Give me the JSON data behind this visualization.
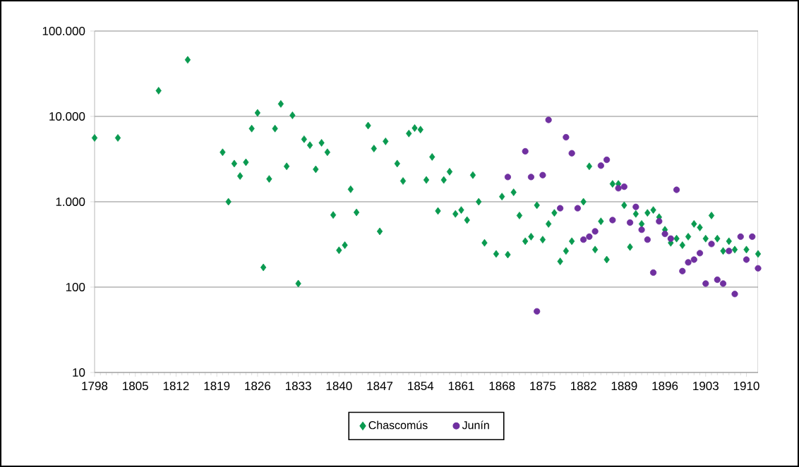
{
  "chart_data": {
    "type": "scatter",
    "log": "y",
    "grid": "y",
    "legend": "bottom",
    "xlim": [
      1798,
      1912
    ],
    "xticks": [
      1798,
      1805,
      1812,
      1819,
      1826,
      1833,
      1840,
      1847,
      1854,
      1861,
      1868,
      1875,
      1882,
      1889,
      1896,
      1903,
      1910
    ],
    "ylim": [
      10,
      100000
    ],
    "yticks": [
      {
        "value": 10,
        "label": "10"
      },
      {
        "value": 100,
        "label": "100"
      },
      {
        "value": 1000,
        "label": "1.000"
      },
      {
        "value": 10000,
        "label": "10.000"
      },
      {
        "value": 100000,
        "label": "100.000"
      }
    ],
    "series": [
      {
        "name": "Chascomús",
        "color": "#0a9a50",
        "marker": "diamond",
        "x": [
          1798,
          1802,
          1809,
          1814,
          1820,
          1821,
          1822,
          1823,
          1824,
          1825,
          1826,
          1827,
          1828,
          1829,
          1830,
          1831,
          1832,
          1833,
          1834,
          1835,
          1836,
          1837,
          1838,
          1839,
          1840,
          1841,
          1842,
          1843,
          1845,
          1846,
          1847,
          1848,
          1850,
          1851,
          1852,
          1853,
          1854,
          1855,
          1856,
          1857,
          1858,
          1859,
          1860,
          1861,
          1862,
          1863,
          1864,
          1865,
          1867,
          1868,
          1869,
          1870,
          1871,
          1872,
          1873,
          1874,
          1875,
          1876,
          1877,
          1878,
          1879,
          1880,
          1882,
          1883,
          1884,
          1885,
          1886,
          1887,
          1888,
          1889,
          1890,
          1891,
          1892,
          1893,
          1894,
          1895,
          1896,
          1897,
          1898,
          1899,
          1900,
          1901,
          1902,
          1903,
          1904,
          1905,
          1906,
          1907,
          1908,
          1910,
          1912
        ],
        "values": [
          5600,
          5600,
          20000,
          46000,
          3800,
          1000,
          2800,
          2000,
          2900,
          7200,
          11000,
          170,
          1850,
          7200,
          14000,
          2600,
          10300,
          110,
          5400,
          4600,
          2400,
          4900,
          3800,
          700,
          270,
          310,
          1400,
          750,
          7800,
          4200,
          450,
          5100,
          2800,
          1750,
          6300,
          7300,
          7000,
          1800,
          3350,
          780,
          1800,
          2250,
          720,
          800,
          610,
          2050,
          1000,
          330,
          245,
          1150,
          240,
          1290,
          690,
          345,
          390,
          910,
          360,
          550,
          740,
          200,
          265,
          345,
          1000,
          2600,
          275,
          590,
          210,
          1620,
          1620,
          910,
          295,
          720,
          550,
          740,
          800,
          660,
          470,
          330,
          370,
          310,
          390,
          550,
          500,
          370,
          690,
          370,
          265,
          345,
          275,
          275,
          245
        ]
      },
      {
        "name": "Junín",
        "color": "#7030a0",
        "marker": "circle",
        "x": [
          1869,
          1872,
          1873,
          1874,
          1875,
          1876,
          1878,
          1879,
          1880,
          1881,
          1882,
          1883,
          1884,
          1885,
          1886,
          1887,
          1888,
          1889,
          1890,
          1891,
          1892,
          1893,
          1894,
          1895,
          1896,
          1897,
          1898,
          1899,
          1900,
          1901,
          1902,
          1903,
          1904,
          1905,
          1906,
          1907,
          1908,
          1909,
          1910,
          1911,
          1912
        ],
        "values": [
          1950,
          3900,
          1950,
          52,
          2050,
          9100,
          840,
          5700,
          3700,
          840,
          360,
          390,
          450,
          2650,
          3100,
          610,
          1440,
          1500,
          570,
          870,
          470,
          360,
          148,
          590,
          420,
          370,
          1380,
          154,
          195,
          210,
          250,
          110,
          320,
          122,
          110,
          265,
          83,
          390,
          210,
          390,
          166
        ]
      }
    ]
  }
}
